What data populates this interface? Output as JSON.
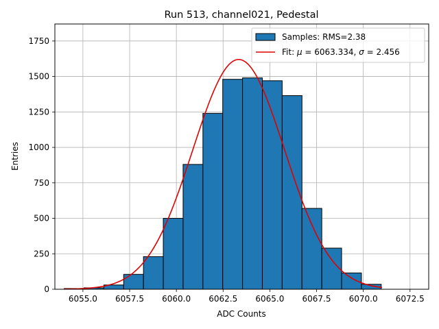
{
  "chart_data": {
    "type": "bar",
    "title": "Run 513, channel021, Pedestal",
    "xlabel": "ADC Counts",
    "ylabel": "Entries",
    "xlim": [
      6053.5,
      6073.5
    ],
    "ylim": [
      0,
      1870
    ],
    "grid": true,
    "bin_edges": [
      6054,
      6055.06,
      6056.12,
      6057.18,
      6058.24,
      6059.3,
      6060.36,
      6061.42,
      6062.48,
      6063.54,
      6064.6,
      6065.66,
      6066.72,
      6067.78,
      6068.84,
      6069.9,
      6070.96
    ],
    "values": [
      5,
      10,
      30,
      105,
      230,
      500,
      880,
      1240,
      1480,
      1490,
      1470,
      1365,
      570,
      290,
      115,
      35,
      15
    ],
    "bar_color": "#1f77b4",
    "fit_color": "#e00000",
    "xticks": [
      {
        "value": 6055.0,
        "label": "6055.0"
      },
      {
        "value": 6057.5,
        "label": "6057.5"
      },
      {
        "value": 6060.0,
        "label": "6060.0"
      },
      {
        "value": 6062.5,
        "label": "6062.5"
      },
      {
        "value": 6065.0,
        "label": "6065.0"
      },
      {
        "value": 6067.5,
        "label": "6067.5"
      },
      {
        "value": 6070.0,
        "label": "6070.0"
      },
      {
        "value": 6072.5,
        "label": "6072.5"
      }
    ],
    "yticks": [
      {
        "value": 0,
        "label": "0"
      },
      {
        "value": 250,
        "label": "250"
      },
      {
        "value": 500,
        "label": "500"
      },
      {
        "value": 750,
        "label": "750"
      },
      {
        "value": 1000,
        "label": "1000"
      },
      {
        "value": 1250,
        "label": "1250"
      },
      {
        "value": 1500,
        "label": "1500"
      },
      {
        "value": 1750,
        "label": "1750"
      }
    ],
    "fit": {
      "mu": 6063.334,
      "sigma": 2.456,
      "amplitude": 1620,
      "x_range": [
        6054,
        6071
      ]
    },
    "legend": {
      "location": "upper right",
      "entries": [
        {
          "kind": "patch",
          "label": "Samples: RMS=2.38"
        },
        {
          "kind": "line",
          "label_prefix": "Fit: ",
          "mu_symbol": "μ",
          "mu_text": " = 6063.334, ",
          "sigma_symbol": "σ",
          "sigma_text": " = 2.456"
        }
      ]
    }
  }
}
